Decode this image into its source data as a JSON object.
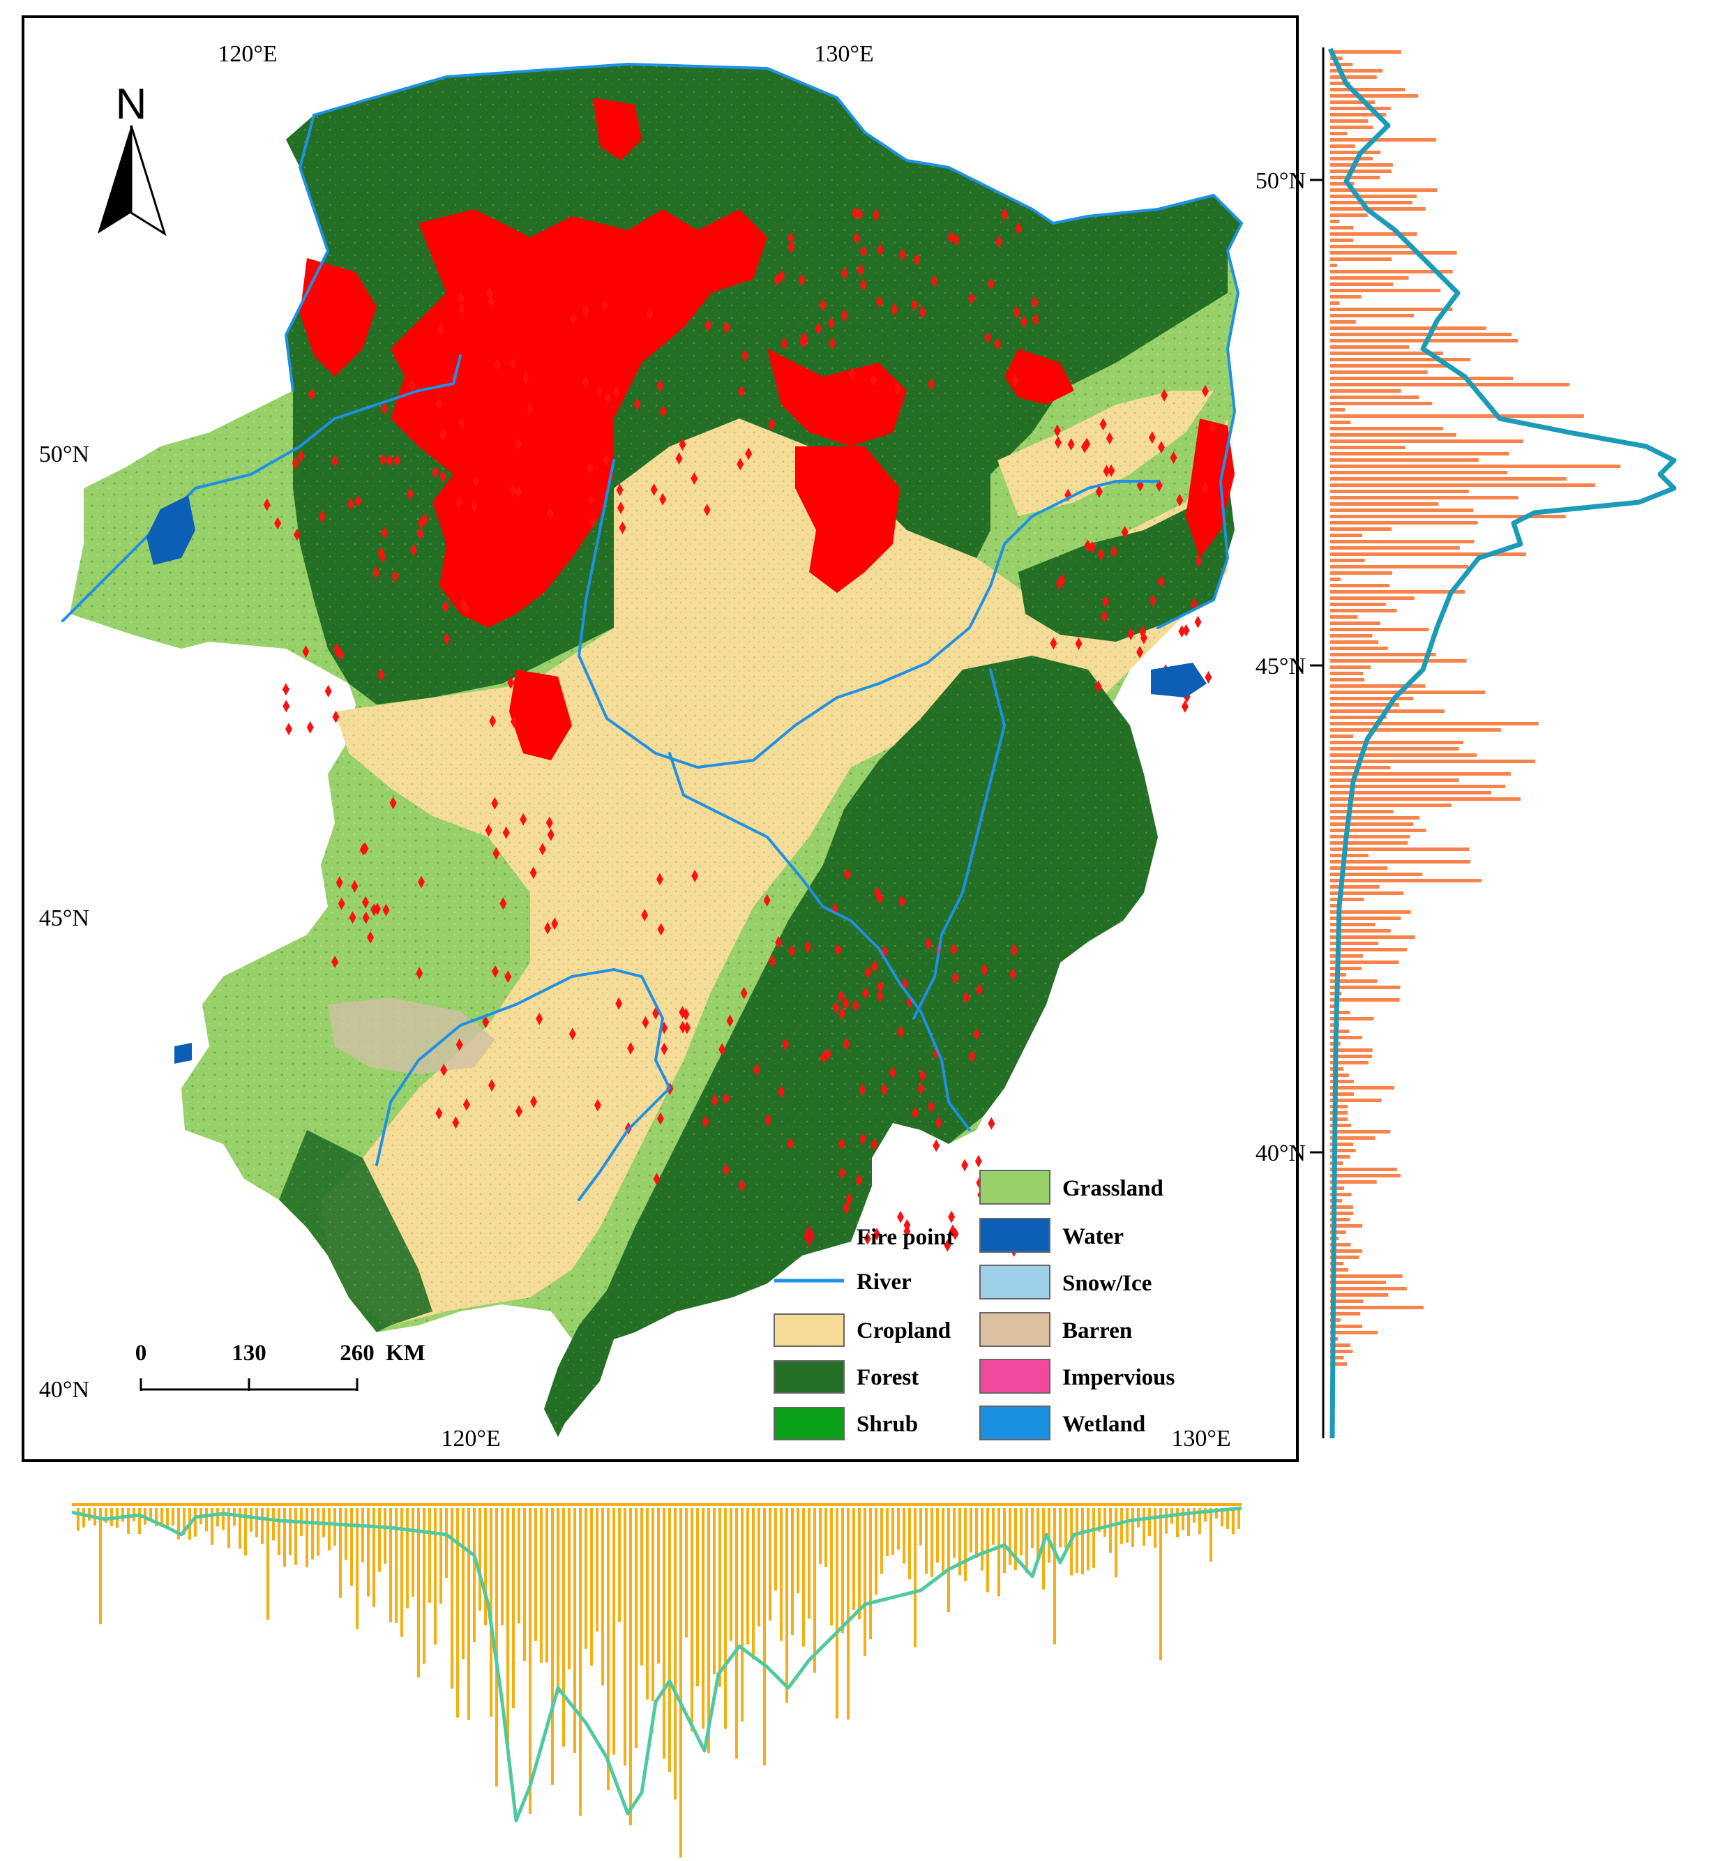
{
  "map": {
    "north_arrow_label": "N",
    "top_lon_labels": [
      "120°E",
      "130°E"
    ],
    "bottom_lon_labels": [
      "120°E",
      "130°E"
    ],
    "left_lat_labels": [
      "50°N",
      "45°N",
      "40°N"
    ],
    "right_lat_labels": [
      "50°N",
      "45°N",
      "40°N"
    ],
    "scale_bar": {
      "ticks": [
        "0",
        "130",
        "260"
      ],
      "unit": "KM"
    },
    "colors": {
      "forest": "#236f26",
      "cropland": "#f7dc98",
      "grassland": "#98d06a",
      "fire": "#ff0000",
      "river": "#1e90e6",
      "water": "#0d5fb5"
    }
  },
  "legend": {
    "left": [
      {
        "label": "Fire point",
        "kind": "diamond",
        "color": "#e8101a"
      },
      {
        "label": "River",
        "kind": "line",
        "color": "#1e90e6"
      },
      {
        "label": "Cropland",
        "kind": "box",
        "color": "#f7dc98"
      },
      {
        "label": "Forest",
        "kind": "box",
        "color": "#236f26"
      },
      {
        "label": "Shrub",
        "kind": "box",
        "color": "#0aa018"
      }
    ],
    "right": [
      {
        "label": "Grassland",
        "kind": "box",
        "color": "#98d06a"
      },
      {
        "label": "Water",
        "kind": "box",
        "color": "#0d5fb5"
      },
      {
        "label": "Snow/Ice",
        "kind": "box",
        "color": "#9fd0ea"
      },
      {
        "label": "Barren",
        "kind": "box",
        "color": "#dcc0a0"
      },
      {
        "label": "Impervious",
        "kind": "box",
        "color": "#f0489c"
      },
      {
        "label": "Wetland",
        "kind": "box",
        "color": "#1a90e0"
      }
    ]
  },
  "marginal_charts": {
    "right_bar_color": "#f8834a",
    "right_line_color": "#1c9bb8",
    "bottom_bar_color": "#f6ae12",
    "bottom_line_color": "#4fc9a0"
  }
}
